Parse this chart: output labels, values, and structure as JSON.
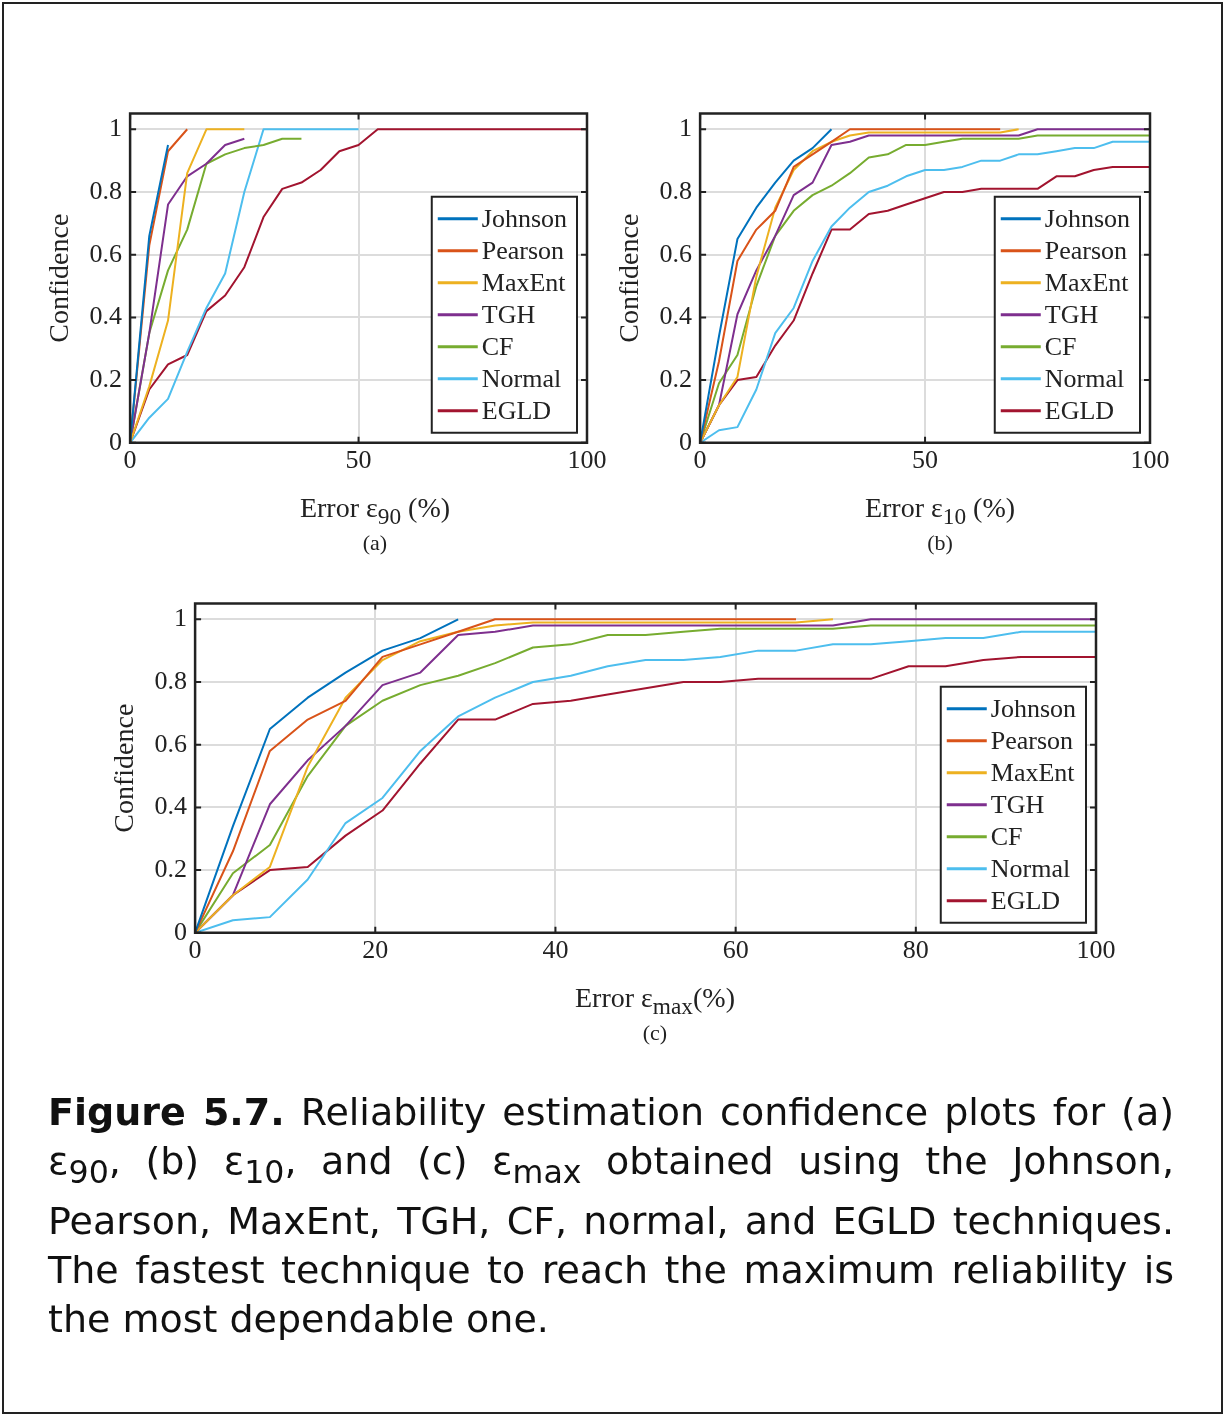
{
  "chart_data": [
    {
      "type": "line",
      "xlabel": "Error ε$_{90}$ (%)",
      "ylabel": "Confidence",
      "annotations": [
        "(a)"
      ],
      "xlim": [
        0,
        100
      ],
      "xticks": [
        0,
        50,
        100
      ],
      "ylim": [
        0,
        1.05
      ],
      "yticks": [
        0,
        0.2,
        0.4,
        0.6,
        0.8,
        1
      ],
      "grid": true,
      "legend": "bottom right",
      "marker": "none",
      "line_style": "solid",
      "x": [
        0,
        4.2,
        8.3,
        12.5,
        16.7,
        20.8,
        25,
        29.2,
        33.3,
        37.5,
        41.7,
        45.8,
        50,
        54.2,
        58.3,
        62.5,
        66.7,
        70.8,
        75,
        79.2,
        83.3,
        87.5,
        91.7,
        95.8,
        100
      ],
      "series": [
        {
          "name": "Johnson",
          "color": "#0072bd",
          "values": [
            0,
            0.66,
            0.95,
            null,
            null,
            null,
            null,
            null,
            null,
            null,
            null,
            null,
            null,
            null,
            null,
            null,
            null,
            null,
            null,
            null,
            null,
            null,
            null,
            null,
            null
          ]
        },
        {
          "name": "Pearson",
          "color": "#d95319",
          "values": [
            0,
            0.63,
            0.93,
            1,
            null,
            null,
            null,
            null,
            null,
            null,
            null,
            null,
            null,
            null,
            null,
            null,
            null,
            null,
            null,
            null,
            null,
            null,
            null,
            null,
            null
          ]
        },
        {
          "name": "MaxEnt",
          "color": "#edb120",
          "values": [
            0,
            0.18,
            0.39,
            0.86,
            1,
            1,
            1,
            null,
            null,
            null,
            null,
            null,
            null,
            null,
            null,
            null,
            null,
            null,
            null,
            null,
            null,
            null,
            null,
            null,
            null
          ]
        },
        {
          "name": "TGH",
          "color": "#7e2f8e",
          "values": [
            0,
            0.35,
            0.76,
            0.85,
            0.89,
            0.95,
            0.97,
            null,
            null,
            null,
            null,
            null,
            null,
            null,
            null,
            null,
            null,
            null,
            null,
            null,
            null,
            null,
            null,
            null,
            null
          ]
        },
        {
          "name": "CF",
          "color": "#77ac30",
          "values": [
            0,
            0.35,
            0.55,
            0.68,
            0.89,
            0.92,
            0.94,
            0.95,
            0.97,
            0.97,
            null,
            null,
            null,
            null,
            null,
            null,
            null,
            null,
            null,
            null,
            null,
            null,
            null,
            null,
            null
          ]
        },
        {
          "name": "Normal",
          "color": "#4dbeee",
          "values": [
            0,
            0.08,
            0.14,
            0.29,
            0.43,
            0.54,
            0.8,
            1,
            1,
            1,
            1,
            1,
            1,
            null,
            null,
            null,
            null,
            null,
            null,
            null,
            null,
            null,
            null,
            null,
            null
          ]
        },
        {
          "name": "EGLD",
          "color": "#a2142f",
          "values": [
            0,
            0.17,
            0.25,
            0.28,
            0.42,
            0.47,
            0.56,
            0.72,
            0.81,
            0.83,
            0.87,
            0.93,
            0.95,
            1,
            1,
            1,
            1,
            1,
            1,
            1,
            1,
            1,
            1,
            1,
            1
          ]
        }
      ]
    },
    {
      "type": "line",
      "xlabel": "Error ε$_{10}$ (%)",
      "ylabel": "Confidence",
      "annotations": [
        "(b)"
      ],
      "xlim": [
        0,
        100
      ],
      "xticks": [
        0,
        50,
        100
      ],
      "ylim": [
        0,
        1.05
      ],
      "yticks": [
        0,
        0.2,
        0.4,
        0.6,
        0.8,
        1
      ],
      "grid": true,
      "legend": "bottom right",
      "marker": "none",
      "line_style": "solid",
      "x": [
        0,
        4.2,
        8.3,
        12.5,
        16.7,
        20.8,
        25,
        29.2,
        33.3,
        37.5,
        41.7,
        45.8,
        50,
        54.2,
        58.3,
        62.5,
        66.7,
        70.8,
        75,
        79.2,
        83.3,
        87.5,
        91.7,
        95.8,
        100
      ],
      "series": [
        {
          "name": "Johnson",
          "color": "#0072bd",
          "values": [
            0,
            0.34,
            0.65,
            0.75,
            0.83,
            0.9,
            0.94,
            1,
            null,
            null,
            null,
            null,
            null,
            null,
            null,
            null,
            null,
            null,
            null,
            null,
            null,
            null,
            null,
            null,
            null
          ]
        },
        {
          "name": "Pearson",
          "color": "#d95319",
          "values": [
            0,
            0.26,
            0.58,
            0.68,
            0.74,
            0.88,
            0.92,
            0.96,
            1,
            1,
            1,
            1,
            1,
            1,
            1,
            1,
            1,
            null,
            null,
            null,
            null,
            null,
            null,
            null,
            null
          ]
        },
        {
          "name": "MaxEnt",
          "color": "#edb120",
          "values": [
            0,
            0.12,
            0.21,
            0.53,
            0.75,
            0.87,
            0.93,
            0.96,
            0.98,
            0.99,
            0.99,
            0.99,
            0.99,
            0.99,
            0.99,
            0.99,
            0.99,
            1,
            null,
            null,
            null,
            null,
            null,
            null,
            null
          ]
        },
        {
          "name": "TGH",
          "color": "#7e2f8e",
          "values": [
            0,
            0.12,
            0.41,
            0.55,
            0.66,
            0.79,
            0.83,
            0.95,
            0.96,
            0.98,
            0.98,
            0.98,
            0.98,
            0.98,
            0.98,
            0.98,
            0.98,
            0.98,
            1,
            1,
            1,
            1,
            1,
            1,
            1
          ]
        },
        {
          "name": "CF",
          "color": "#77ac30",
          "values": [
            0,
            0.19,
            0.28,
            0.5,
            0.66,
            0.74,
            0.79,
            0.82,
            0.86,
            0.91,
            0.92,
            0.95,
            0.95,
            0.96,
            0.97,
            0.97,
            0.97,
            0.97,
            0.98,
            0.98,
            0.98,
            0.98,
            0.98,
            0.98,
            0.98
          ]
        },
        {
          "name": "Normal",
          "color": "#4dbeee",
          "values": [
            0,
            0.04,
            0.05,
            0.17,
            0.35,
            0.43,
            0.58,
            0.69,
            0.75,
            0.8,
            0.82,
            0.85,
            0.87,
            0.87,
            0.88,
            0.9,
            0.9,
            0.92,
            0.92,
            0.93,
            0.94,
            0.94,
            0.96,
            0.96,
            0.96
          ]
        },
        {
          "name": "EGLD",
          "color": "#a2142f",
          "values": [
            0,
            0.12,
            0.2,
            0.21,
            0.31,
            0.39,
            0.54,
            0.68,
            0.68,
            0.73,
            0.74,
            0.76,
            0.78,
            0.8,
            0.8,
            0.81,
            0.81,
            0.81,
            0.81,
            0.85,
            0.85,
            0.87,
            0.88,
            0.88,
            0.88
          ]
        }
      ]
    },
    {
      "type": "line",
      "xlabel": "Error ε$_{max}$(%)",
      "ylabel": "Confidence",
      "annotations": [
        "(c)",
        "Figure 5.7.",
        "Reliability estimation confidence plots for (a) ε$_{90}$, (b) ε$_{10}$, and (c) ε$_{max}$ obtained using the Johnson, Pearson, MaxEnt, TGH, CF, normal, and EGLD techniques. The fastest technique to reach the maximum reliability is the most dependable one."
      ],
      "xlim": [
        0,
        100
      ],
      "xticks": [
        0,
        20,
        40,
        60,
        80,
        100
      ],
      "ylim": [
        0,
        1.05
      ],
      "yticks": [
        0,
        0.2,
        0.4,
        0.6,
        0.8,
        1
      ],
      "grid": true,
      "legend": "bottom right",
      "marker": "none",
      "line_style": "solid",
      "x": [
        0,
        4.2,
        8.3,
        12.5,
        16.7,
        20.8,
        25,
        29.2,
        33.3,
        37.5,
        41.7,
        45.8,
        50,
        54.2,
        58.3,
        62.5,
        66.7,
        70.8,
        75,
        79.2,
        83.3,
        87.5,
        91.7,
        95.8,
        100
      ],
      "series": [
        {
          "name": "Johnson",
          "color": "#0072bd",
          "values": [
            0,
            0.34,
            0.65,
            0.75,
            0.83,
            0.9,
            0.94,
            1,
            null,
            null,
            null,
            null,
            null,
            null,
            null,
            null,
            null,
            null,
            null,
            null,
            null,
            null,
            null,
            null,
            null
          ]
        },
        {
          "name": "Pearson",
          "color": "#d95319",
          "values": [
            0,
            0.26,
            0.58,
            0.68,
            0.74,
            0.88,
            0.92,
            0.96,
            1,
            1,
            1,
            1,
            1,
            1,
            1,
            1,
            1,
            null,
            null,
            null,
            null,
            null,
            null,
            null,
            null
          ]
        },
        {
          "name": "MaxEnt",
          "color": "#edb120",
          "values": [
            0,
            0.12,
            0.21,
            0.53,
            0.75,
            0.87,
            0.93,
            0.96,
            0.98,
            0.99,
            0.99,
            0.99,
            0.99,
            0.99,
            0.99,
            0.99,
            0.99,
            1,
            null,
            null,
            null,
            null,
            null,
            null,
            null
          ]
        },
        {
          "name": "TGH",
          "color": "#7e2f8e",
          "values": [
            0,
            0.12,
            0.41,
            0.55,
            0.66,
            0.79,
            0.83,
            0.95,
            0.96,
            0.98,
            0.98,
            0.98,
            0.98,
            0.98,
            0.98,
            0.98,
            0.98,
            0.98,
            1,
            1,
            1,
            1,
            1,
            1,
            1
          ]
        },
        {
          "name": "CF",
          "color": "#77ac30",
          "values": [
            0,
            0.19,
            0.28,
            0.5,
            0.66,
            0.74,
            0.79,
            0.82,
            0.86,
            0.91,
            0.92,
            0.95,
            0.95,
            0.96,
            0.97,
            0.97,
            0.97,
            0.97,
            0.98,
            0.98,
            0.98,
            0.98,
            0.98,
            0.98,
            0.98
          ]
        },
        {
          "name": "Normal",
          "color": "#4dbeee",
          "values": [
            0,
            0.04,
            0.05,
            0.17,
            0.35,
            0.43,
            0.58,
            0.69,
            0.75,
            0.8,
            0.82,
            0.85,
            0.87,
            0.87,
            0.88,
            0.9,
            0.9,
            0.92,
            0.92,
            0.93,
            0.94,
            0.94,
            0.96,
            0.96,
            0.96
          ]
        },
        {
          "name": "EGLD",
          "color": "#a2142f",
          "values": [
            0,
            0.12,
            0.2,
            0.21,
            0.31,
            0.39,
            0.54,
            0.68,
            0.68,
            0.73,
            0.74,
            0.76,
            0.78,
            0.8,
            0.8,
            0.81,
            0.81,
            0.81,
            0.81,
            0.85,
            0.85,
            0.87,
            0.88,
            0.88,
            0.88
          ]
        }
      ]
    }
  ]
}
